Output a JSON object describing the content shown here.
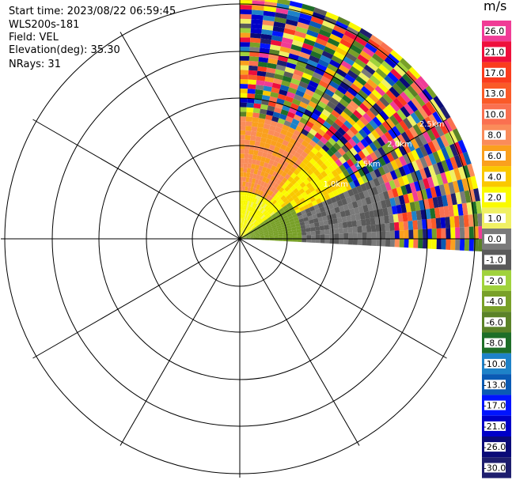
{
  "header": {
    "start_time": "Start time: 2023/08/22 06:59:45",
    "instrument": "WLS200s-181",
    "field": "Field: VEL",
    "elevation": "Elevation(deg): 35.30",
    "nrays": "NRays: 31"
  },
  "chart_data": {
    "type": "heatmap",
    "projection": "polar-ppi",
    "azimuth_range_deg": [
      0,
      93
    ],
    "n_rays": 31,
    "range_ring_labels": [
      "1.0km",
      "1.5km",
      "2.0km",
      "2.5km",
      "3.0km"
    ],
    "colorbar": {
      "title": "m/s",
      "ticks": [
        "26.0",
        "21.0",
        "17.0",
        "13.0",
        "10.0",
        "8.0",
        "6.0",
        "4.0",
        "2.0",
        "1.0",
        "0.0",
        "-1.0",
        "-2.0",
        "-4.0",
        "-6.0",
        "-8.0",
        "-10.0",
        "-13.0",
        "-17.0",
        "-21.0",
        "-26.0",
        "-30.0"
      ],
      "colors": [
        "#f03c96",
        "#ee0f3c",
        "#fa3c1e",
        "#fa5a28",
        "#fa7050",
        "#fa8c5a",
        "#faa01e",
        "#fac800",
        "#fafa00",
        "#f0f064",
        "#7a7a7a",
        "#5a5a5a",
        "#a0d23c",
        "#78a028",
        "#5a8228",
        "#1e6e28",
        "#1e82c8",
        "#0a5ab4",
        "#0014ff",
        "#0000c8",
        "#0a0a78",
        "#1e1e6e"
      ]
    },
    "zones": [
      {
        "name": "near-ground green",
        "range_km": [
          0.0,
          0.8
        ],
        "azimuth_deg": [
          55,
          93
        ],
        "value": -3.0
      },
      {
        "name": "near yellow",
        "range_km": [
          0.0,
          0.6
        ],
        "azimuth_deg": [
          0,
          55
        ],
        "value": 2.5
      },
      {
        "name": "mid orange",
        "range_km": [
          0.6,
          1.6
        ],
        "azimuth_deg": [
          0,
          40
        ],
        "value": 8.0
      },
      {
        "name": "mid yellow-orange",
        "range_km": [
          0.6,
          1.6
        ],
        "azimuth_deg": [
          40,
          65
        ],
        "value": 4.0
      },
      {
        "name": "mid grey",
        "range_km": [
          0.8,
          2.0
        ],
        "azimuth_deg": [
          65,
          93
        ],
        "value": 0.0
      },
      {
        "name": "far noise",
        "range_km": [
          1.6,
          3.2
        ],
        "azimuth_deg": [
          0,
          93
        ],
        "value": "noise"
      }
    ],
    "grid": true
  }
}
